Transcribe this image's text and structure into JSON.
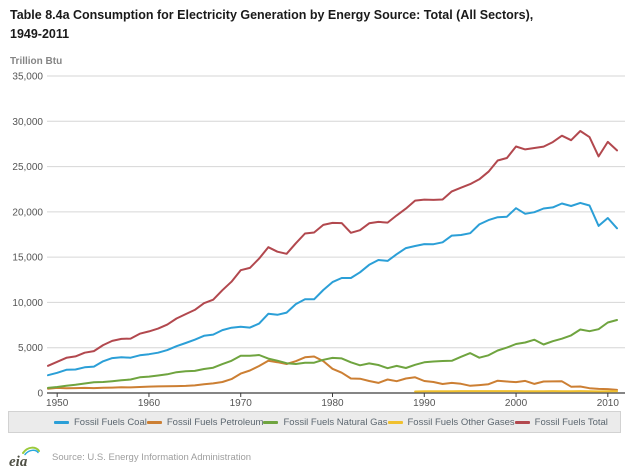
{
  "title": {
    "line1": "Table 8.4a Consumption for Electricity Generation by Energy Source: Total (All Sectors),",
    "line2": "1949-2011"
  },
  "y_axis_unit": "Trillion Btu",
  "footer": {
    "logo_text": "eia",
    "source": "Source: U.S. Energy Information Administration"
  },
  "colors": {
    "coal": "#2b9fd7",
    "petroleum": "#cc7f33",
    "natural_gas": "#6fa43f",
    "other_gases": "#f0c02e",
    "total": "#b2484e",
    "gridline": "#d6d6d6",
    "axis": "#3c3c3c",
    "tick_label": "#555555",
    "title_text": "#1a1a1a",
    "legend_bg": "#ebebeb",
    "source_text": "#9e9e9e"
  },
  "chart_data": {
    "type": "line",
    "title": "Table 8.4a Consumption for Electricity Generation by Energy Source: Total (All Sectors), 1949-2011",
    "xlabel": "",
    "ylabel": "Trillion Btu",
    "ylim": [
      0,
      35000
    ],
    "x_range": [
      1949,
      2011
    ],
    "grid": true,
    "legend_position": "bottom",
    "yticks": [
      {
        "value": 0,
        "label": "0"
      },
      {
        "value": 5000,
        "label": "5,000"
      },
      {
        "value": 10000,
        "label": "10,000"
      },
      {
        "value": 15000,
        "label": "15,000"
      },
      {
        "value": 20000,
        "label": "20,000"
      },
      {
        "value": 25000,
        "label": "25,000"
      },
      {
        "value": 30000,
        "label": "30,000"
      },
      {
        "value": 35000,
        "label": "35,000"
      }
    ],
    "xticks": [
      1950,
      1960,
      1970,
      1980,
      1990,
      2000,
      2010
    ],
    "series": [
      {
        "name": "Fossil Fuels Coal",
        "color": "#2b9fd7",
        "values": [
          1960,
          2230,
          2560,
          2600,
          2840,
          2910,
          3500,
          3850,
          3940,
          3900,
          4160,
          4280,
          4450,
          4740,
          5170,
          5520,
          5890,
          6310,
          6450,
          6940,
          7210,
          7310,
          7220,
          7660,
          8750,
          8630,
          8880,
          9820,
          10340,
          10340,
          11370,
          12240,
          12700,
          12700,
          13330,
          14150,
          14680,
          14580,
          15320,
          16000,
          16230,
          16440,
          16430,
          16640,
          17380,
          17440,
          17640,
          18610,
          19090,
          19410,
          19460,
          20400,
          19790,
          19960,
          20370,
          20490,
          20920,
          20650,
          20990,
          20700,
          18450,
          19320,
          18190
        ]
      },
      {
        "name": "Fossil Fuels Petroleum",
        "color": "#cc7f33",
        "values": [
          480,
          560,
          530,
          540,
          560,
          540,
          580,
          600,
          630,
          620,
          660,
          710,
          730,
          740,
          760,
          780,
          840,
          960,
          1060,
          1220,
          1530,
          2140,
          2480,
          2980,
          3550,
          3400,
          3200,
          3510,
          3940,
          4030,
          3520,
          2670,
          2240,
          1600,
          1580,
          1320,
          1120,
          1490,
          1300,
          1600,
          1730,
          1330,
          1220,
          990,
          1120,
          1020,
          800,
          870,
          970,
          1360,
          1270,
          1200,
          1340,
          1000,
          1270,
          1280,
          1290,
          700,
          720,
          530,
          450,
          430,
          340
        ]
      },
      {
        "name": "Fossil Fuels Natural Gas",
        "color": "#6fa43f",
        "values": [
          560,
          660,
          800,
          900,
          1050,
          1180,
          1210,
          1300,
          1400,
          1490,
          1730,
          1810,
          1930,
          2070,
          2300,
          2410,
          2440,
          2650,
          2790,
          3190,
          3550,
          4110,
          4110,
          4200,
          3800,
          3570,
          3290,
          3200,
          3330,
          3350,
          3670,
          3870,
          3820,
          3390,
          3060,
          3270,
          3090,
          2740,
          2990,
          2760,
          3110,
          3390,
          3480,
          3530,
          3560,
          4000,
          4410,
          3900,
          4160,
          4690,
          5010,
          5410,
          5580,
          5890,
          5360,
          5720,
          6000,
          6360,
          7010,
          6820,
          7040,
          7780,
          8060
        ]
      },
      {
        "name": "Fossil Fuels Other Gases",
        "color": "#f0c02e",
        "values": [
          null,
          null,
          null,
          null,
          null,
          null,
          null,
          null,
          null,
          null,
          null,
          null,
          null,
          null,
          null,
          null,
          null,
          null,
          null,
          null,
          null,
          null,
          null,
          null,
          null,
          null,
          null,
          null,
          null,
          null,
          null,
          null,
          null,
          null,
          null,
          null,
          null,
          null,
          null,
          null,
          170,
          190,
          190,
          200,
          200,
          210,
          210,
          210,
          210,
          210,
          210,
          210,
          190,
          200,
          200,
          210,
          200,
          200,
          210,
          200,
          180,
          190,
          190
        ]
      },
      {
        "name": "Fossil Fuels Total",
        "color": "#b2484e",
        "values": [
          3000,
          3450,
          3890,
          4040,
          4450,
          4630,
          5290,
          5750,
          5970,
          6010,
          6550,
          6800,
          7110,
          7550,
          8230,
          8710,
          9170,
          9920,
          10300,
          11350,
          12290,
          13560,
          13810,
          14840,
          16100,
          15600,
          15370,
          16530,
          17610,
          17720,
          18560,
          18780,
          18760,
          17690,
          17970,
          18740,
          18890,
          18810,
          19610,
          20360,
          21240,
          21350,
          21320,
          21360,
          22260,
          22670,
          23060,
          23590,
          24430,
          25670,
          25950,
          27220,
          26900,
          27050,
          27200,
          27700,
          28410,
          27910,
          28930,
          28250,
          26120,
          27720,
          26780
        ]
      }
    ]
  }
}
